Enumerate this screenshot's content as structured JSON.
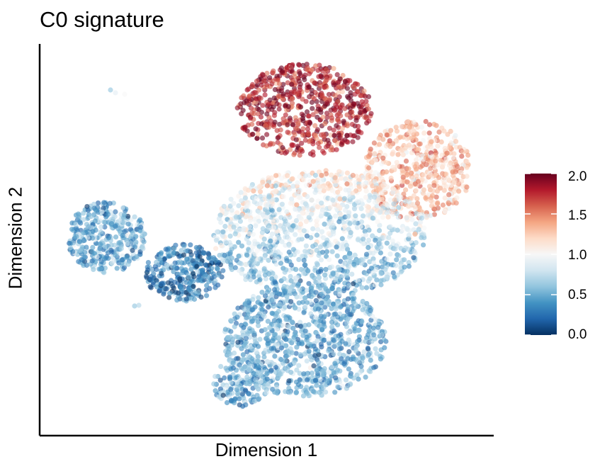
{
  "chart_data": {
    "type": "scatter",
    "title": "C0 signature",
    "xlabel": "Dimension 1",
    "ylabel": "Dimension 2",
    "x_ticks_shown": false,
    "y_ticks_shown": false,
    "grid": false,
    "colorbar": {
      "placement": "right",
      "range": [
        0,
        2
      ],
      "ticks": [
        "2.0",
        "1.5",
        "1.0",
        "0.5",
        "0.0"
      ],
      "colors": [
        "#053061",
        "#2166ac",
        "#4393c3",
        "#92c5de",
        "#d1e5f0",
        "#f7f7f7",
        "#fddbc7",
        "#f4a582",
        "#d6604d",
        "#b2182b",
        "#67001f"
      ]
    },
    "clusters": [
      {
        "region": "top",
        "mean_score": 1.8
      },
      {
        "region": "upper-right",
        "mean_score": 1.3
      },
      {
        "region": "center",
        "mean_score": 0.9
      },
      {
        "region": "left",
        "mean_score": 0.5
      },
      {
        "region": "lower-center",
        "mean_score": 0.5
      },
      {
        "region": "left-neck",
        "mean_score": 0.3
      }
    ]
  }
}
